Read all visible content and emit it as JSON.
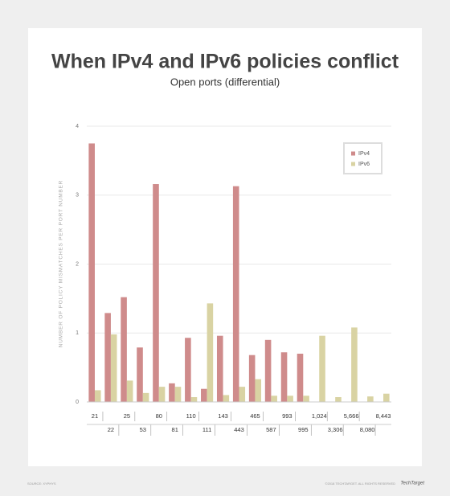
{
  "chart_data": {
    "type": "bar",
    "title": "When IPv4 and IPv6 policies conflict",
    "subtitle": "Open ports (differential)",
    "y_label": "NUMBER OF POLICY MISMATCHES PER PORT NUMBER",
    "source": "SOURCE: XYPHYS",
    "copyright": "©2018 TECHTARGET. ALL RIGHTS RESERVED",
    "brand": "TechTarget",
    "categories": [
      "21",
      "22",
      "25",
      "53",
      "80",
      "81",
      "110",
      "111",
      "143",
      "443",
      "465",
      "587",
      "993",
      "995",
      "1,024",
      "3,306",
      "5,666",
      "8,080",
      "8,443"
    ],
    "series": [
      {
        "name": "IPv4",
        "color": "#cf8b8b",
        "values": [
          3.75,
          1.29,
          1.52,
          0.79,
          3.16,
          0.27,
          0.93,
          0.19,
          0.96,
          3.13,
          0.68,
          0.9,
          0.72,
          0.7,
          0,
          0,
          0,
          0,
          0
        ]
      },
      {
        "name": "IPv6",
        "color": "#d9d3a3",
        "values": [
          0.17,
          0.98,
          0.31,
          0.13,
          0.22,
          0.22,
          0.07,
          1.43,
          0.1,
          0.22,
          0.33,
          0.09,
          0.09,
          0.09,
          0.96,
          0.07,
          1.08,
          0.08,
          0.12
        ]
      }
    ],
    "ylim": [
      0,
      4
    ],
    "yticks": [
      0,
      1,
      2,
      3,
      4
    ],
    "grid": true,
    "legend": "top-right"
  }
}
